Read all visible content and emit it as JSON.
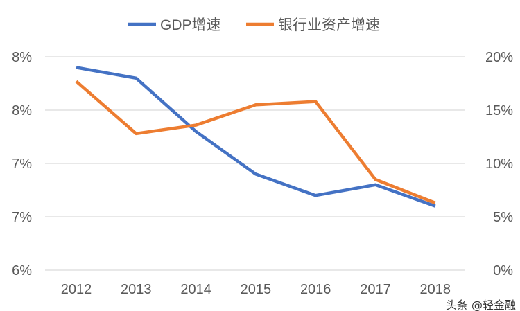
{
  "chart_data": {
    "type": "line",
    "title": "",
    "categories": [
      "2012",
      "2013",
      "2014",
      "2015",
      "2016",
      "2017",
      "2018"
    ],
    "series": [
      {
        "name": "GDP增速",
        "axis": "left",
        "color": "#4472C4",
        "values": [
          7.9,
          7.8,
          7.3,
          6.9,
          6.7,
          6.8,
          6.6
        ]
      },
      {
        "name": "银行业资产增速",
        "axis": "right",
        "color": "#ED7D31",
        "values": [
          17.7,
          12.8,
          13.6,
          15.5,
          15.8,
          8.5,
          6.3
        ]
      }
    ],
    "left_axis": {
      "ylim": [
        6.0,
        8.0
      ],
      "tick_values": [
        6.0,
        6.5,
        7.0,
        7.5,
        8.0
      ],
      "tick_labels": [
        "6%",
        "7%",
        "7%",
        "8%",
        "8%"
      ]
    },
    "right_axis": {
      "ylim": [
        0,
        20
      ],
      "tick_values": [
        0,
        5,
        10,
        15,
        20
      ],
      "tick_labels": [
        "0%",
        "5%",
        "10%",
        "15%",
        "20%"
      ]
    },
    "grid": true,
    "legend_position": "top",
    "xlabel": "",
    "ylabel": ""
  },
  "watermark": "头条 @轻金融"
}
